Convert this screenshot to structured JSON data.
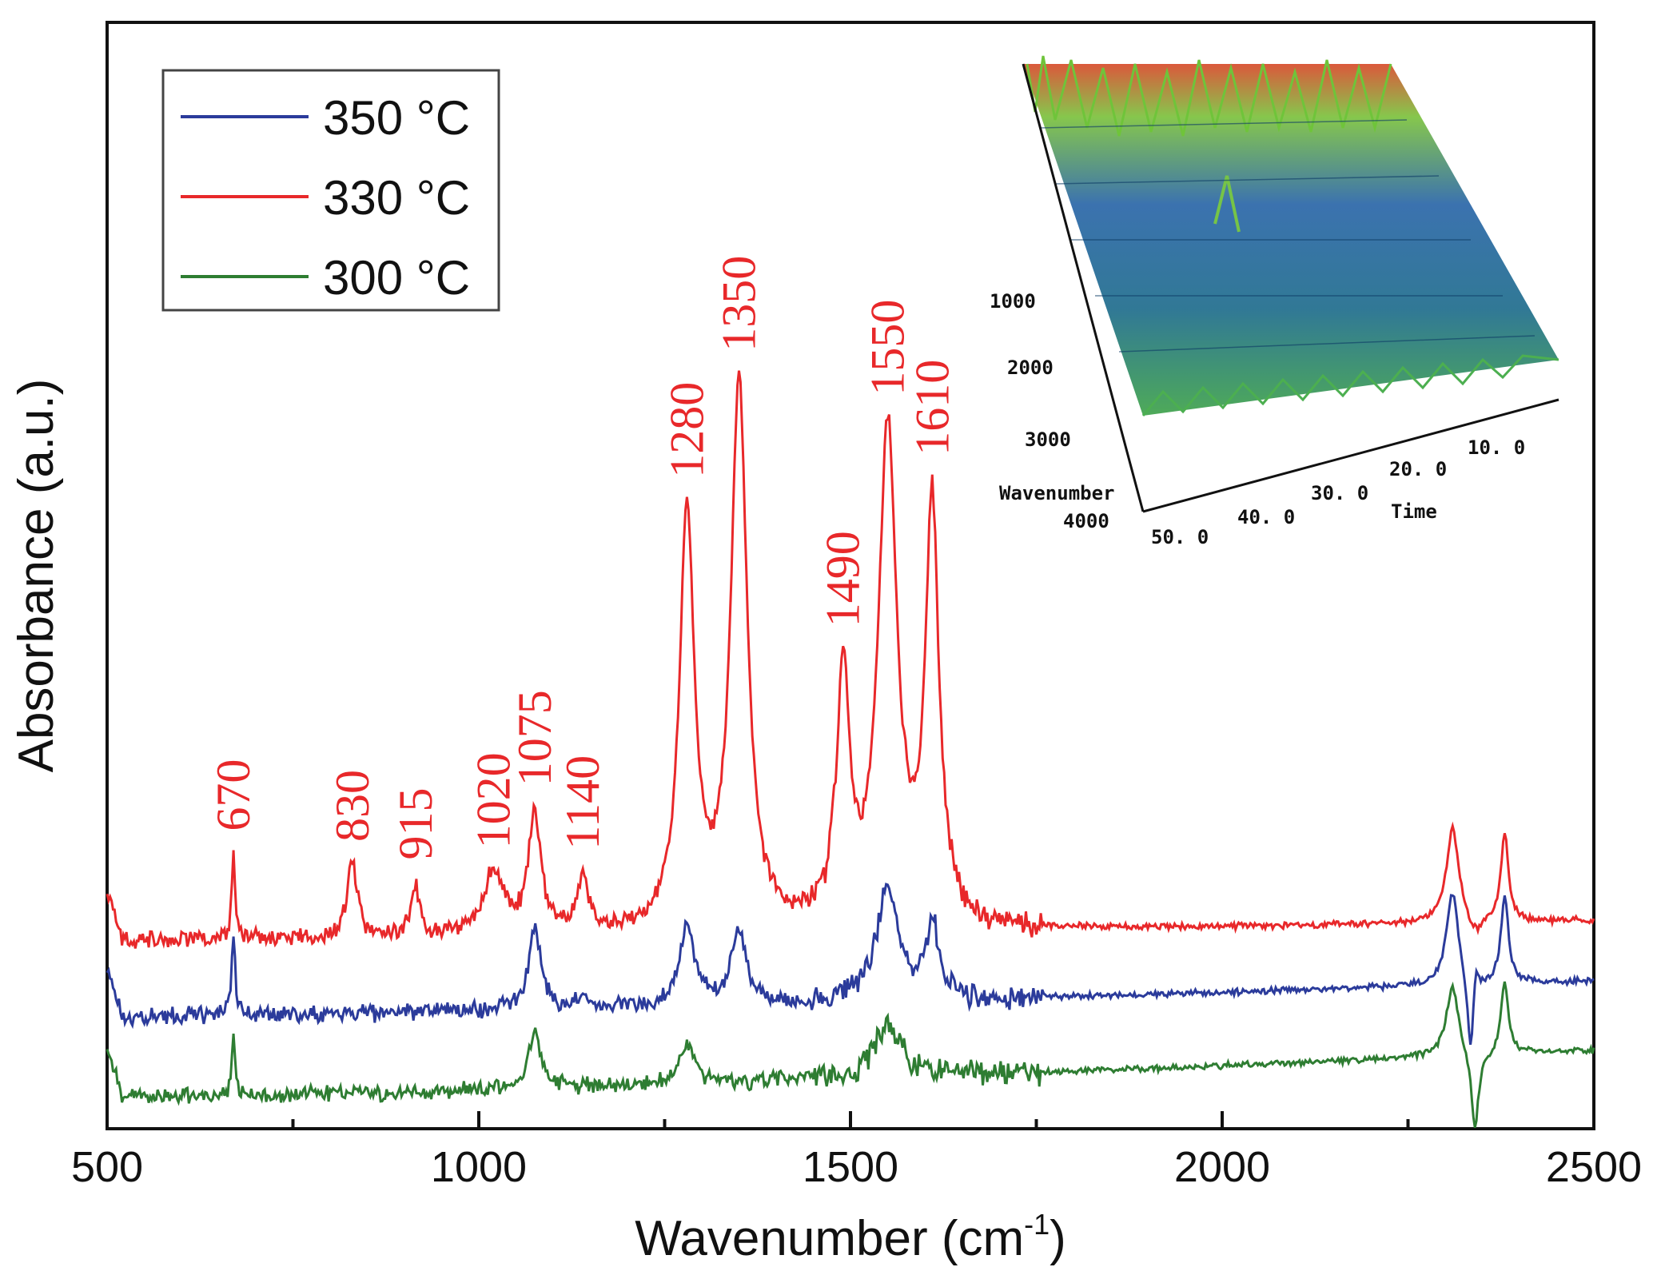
{
  "chart_data": {
    "type": "line",
    "xlabel": "Wavenumber (cm",
    "xlabel_sup": "-1",
    "xlabel_end": ")",
    "ylabel": "Absorbance (a.u.)",
    "xlim": [
      500,
      2500
    ],
    "ylim": [
      0,
      1
    ],
    "x_ticks": [
      "500",
      "1000",
      "1500",
      "2000",
      "2500"
    ],
    "legend": {
      "position": "top-left",
      "entries": [
        {
          "label": "350 °C",
          "color": "#2b3b9b"
        },
        {
          "label": "330 °C",
          "color": "#e8282a"
        },
        {
          "label": "300 °C",
          "color": "#2e7d32"
        }
      ]
    },
    "peak_label_color": "#e8282a",
    "peak_labels": [
      {
        "x": 670,
        "text": "670"
      },
      {
        "x": 830,
        "text": "830"
      },
      {
        "x": 915,
        "text": "915"
      },
      {
        "x": 1020,
        "text": "1020"
      },
      {
        "x": 1075,
        "text": "1075"
      },
      {
        "x": 1140,
        "text": "1140"
      },
      {
        "x": 1280,
        "text": "1280"
      },
      {
        "x": 1350,
        "text": "1350"
      },
      {
        "x": 1490,
        "text": "1490"
      },
      {
        "x": 1550,
        "text": "1550"
      },
      {
        "x": 1610,
        "text": "1610"
      }
    ],
    "series": [
      {
        "name": "330 °C",
        "color": "#e8282a",
        "baseline": 0.235,
        "baseline_end": 0.26,
        "peaks": [
          [
            670,
            0.1,
            3
          ],
          [
            830,
            0.095,
            8
          ],
          [
            915,
            0.06,
            8
          ],
          [
            1020,
            0.085,
            15
          ],
          [
            1075,
            0.15,
            10
          ],
          [
            1140,
            0.07,
            9
          ],
          [
            1280,
            0.52,
            12
          ],
          [
            1350,
            0.68,
            13
          ],
          [
            1490,
            0.32,
            10
          ],
          [
            1550,
            0.62,
            15
          ],
          [
            1610,
            0.52,
            11
          ],
          [
            2310,
            0.12,
            10
          ],
          [
            2340,
            0.08,
            5
          ],
          [
            2380,
            0.11,
            6
          ]
        ],
        "dips": [
          [
            2340,
            0.1,
            6
          ]
        ]
      },
      {
        "name": "350 °C",
        "color": "#2b3b9b",
        "baseline": 0.14,
        "baseline_end": 0.185,
        "peaks": [
          [
            670,
            0.1,
            3
          ],
          [
            1075,
            0.1,
            10
          ],
          [
            1140,
            0.02,
            8
          ],
          [
            1280,
            0.1,
            12
          ],
          [
            1350,
            0.09,
            13
          ],
          [
            1550,
            0.14,
            18
          ],
          [
            1610,
            0.09,
            11
          ],
          [
            2310,
            0.12,
            10
          ],
          [
            2340,
            0.06,
            5
          ],
          [
            2380,
            0.11,
            6
          ]
        ],
        "dips": [
          [
            2335,
            0.12,
            6
          ]
        ]
      },
      {
        "name": "300 °C",
        "color": "#2e7d32",
        "baseline": 0.04,
        "baseline_end": 0.098,
        "peaks": [
          [
            670,
            0.07,
            3
          ],
          [
            1075,
            0.07,
            10
          ],
          [
            1280,
            0.05,
            12
          ],
          [
            1550,
            0.07,
            20
          ],
          [
            2310,
            0.09,
            10
          ],
          [
            2380,
            0.09,
            6
          ]
        ],
        "dips": [
          [
            2340,
            0.1,
            6
          ]
        ]
      }
    ],
    "inset": {
      "type": "3d-surface",
      "axis_ticks_wavenumber": [
        "1000",
        "2000",
        "3000",
        "4000"
      ],
      "axis_ticks_time": [
        "50. 0",
        "40. 0",
        "30. 0",
        "20. 0",
        "10. 0"
      ],
      "axis_label_wavenumber": "Wavenumber",
      "axis_label_time": "Time"
    }
  }
}
